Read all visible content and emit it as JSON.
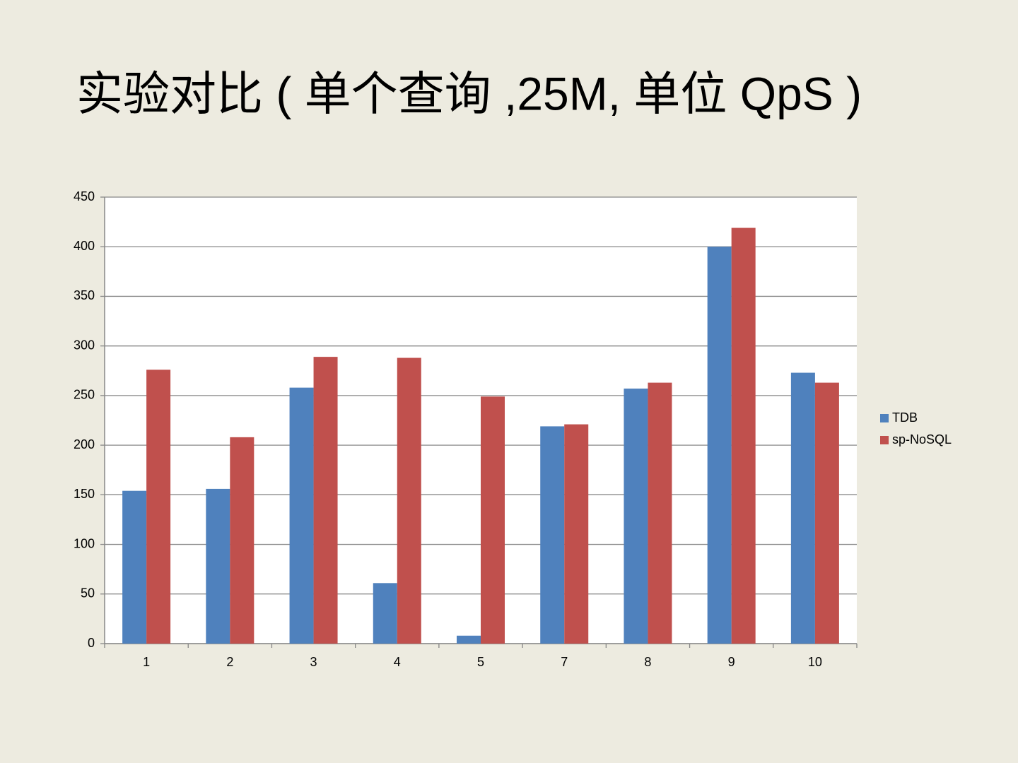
{
  "chart_data": {
    "type": "bar",
    "title": "实验对比 ( 单个查询 ,25M, 单位 QpS )",
    "categories": [
      "1",
      "2",
      "3",
      "4",
      "5",
      "7",
      "8",
      "9",
      "10"
    ],
    "series": [
      {
        "name": "TDB",
        "color": "#4f81bd",
        "values": [
          154,
          156,
          258,
          61,
          8,
          219,
          257,
          400,
          273
        ]
      },
      {
        "name": "sp-NoSQL",
        "color": "#c0504d",
        "values": [
          276,
          208,
          289,
          288,
          249,
          221,
          263,
          419,
          263
        ]
      }
    ],
    "ylim": [
      0,
      450
    ],
    "yticks": [
      0,
      50,
      100,
      150,
      200,
      250,
      300,
      350,
      400,
      450
    ],
    "grid": true,
    "legend": "right"
  }
}
